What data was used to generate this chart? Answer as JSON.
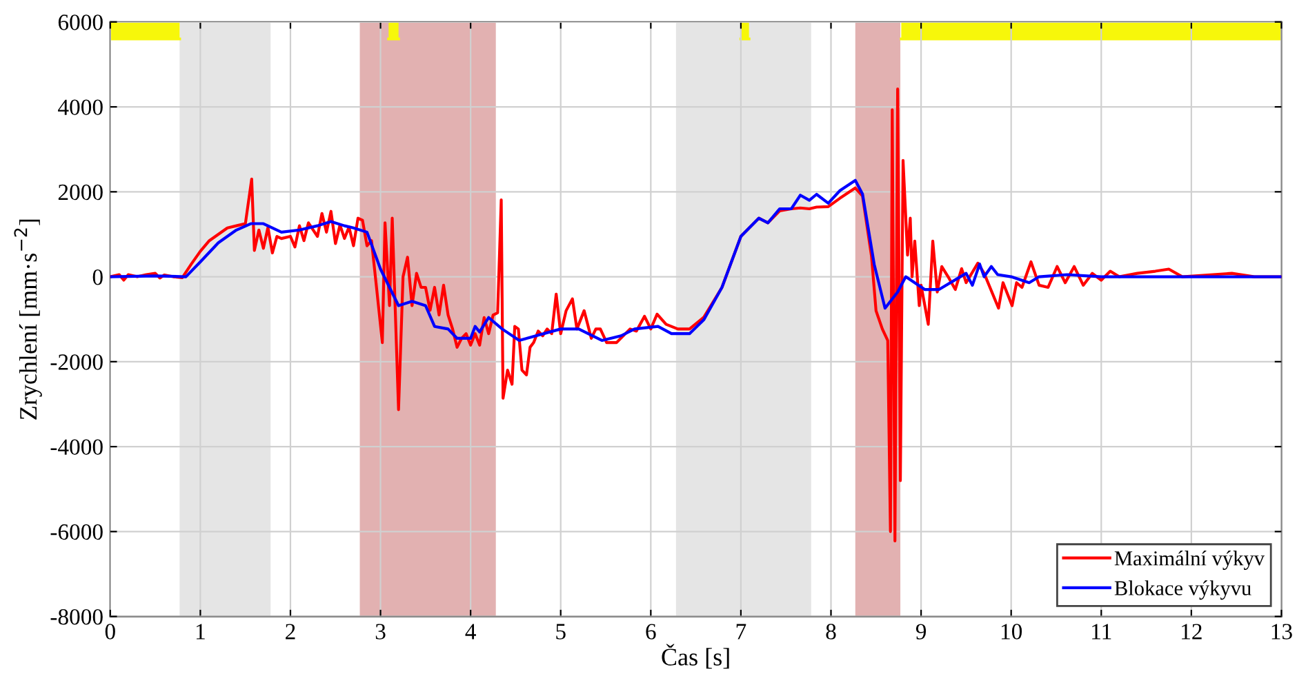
{
  "chart_data": {
    "type": "line",
    "xlabel": "Čas [s]",
    "ylabel": "Zrychlení [mm·s$^{−2}$]",
    "xlim": [
      0,
      13
    ],
    "ylim": [
      -8000,
      6000
    ],
    "xticks": [
      0,
      1,
      2,
      3,
      4,
      5,
      6,
      7,
      8,
      9,
      10,
      11,
      12,
      13
    ],
    "yticks": [
      -8000,
      -6000,
      -4000,
      -2000,
      0,
      2000,
      4000,
      6000
    ],
    "grid": true,
    "legend": "bottom right",
    "line_style": "solid",
    "marker": "none",
    "bands": [
      {
        "axis": "x",
        "from": 0.77,
        "to": 1.78,
        "color": "#e5e5e5"
      },
      {
        "axis": "x",
        "from": 2.77,
        "to": 4.28,
        "color": "#e2b1b1"
      },
      {
        "axis": "x",
        "from": 6.28,
        "to": 7.78,
        "color": "#e5e5e5"
      },
      {
        "axis": "x",
        "from": 8.27,
        "to": 8.77,
        "color": "#e2b1b1"
      }
    ],
    "series": [
      {
        "type": "line",
        "color": "#f7f70a",
        "x": [
          0,
          0.77,
          1.5,
          3.09,
          3.2,
          5,
          7.0,
          7.09,
          8,
          8.78,
          13
        ],
        "values": [
          5600,
          5600,
          null,
          5600,
          5600,
          null,
          5600,
          5600,
          null,
          5600,
          5600
        ],
        "lower": [
          5600,
          5600,
          null,
          5600,
          5600,
          null,
          5600,
          5600,
          null,
          5600,
          5600
        ],
        "upper": [
          6000,
          6000,
          null,
          6000,
          6000,
          null,
          6000,
          6000,
          null,
          6000,
          6000
        ]
      },
      {
        "name": "Maximální výkyv",
        "color": "#ff0000",
        "x": [
          0,
          0.1,
          0.15,
          0.2,
          0.3,
          0.4,
          0.5,
          0.55,
          0.6,
          0.7,
          0.8,
          0.9,
          1.0,
          1.1,
          1.2,
          1.3,
          1.4,
          1.5,
          1.57,
          1.6,
          1.65,
          1.7,
          1.75,
          1.8,
          1.85,
          1.9,
          2.0,
          2.05,
          2.1,
          2.15,
          2.2,
          2.3,
          2.35,
          2.4,
          2.45,
          2.5,
          2.55,
          2.6,
          2.65,
          2.7,
          2.75,
          2.8,
          2.85,
          2.9,
          2.95,
          3.02,
          3.05,
          3.1,
          3.13,
          3.2,
          3.25,
          3.3,
          3.35,
          3.4,
          3.45,
          3.5,
          3.55,
          3.6,
          3.65,
          3.7,
          3.75,
          3.8,
          3.85,
          3.9,
          3.95,
          4.0,
          4.05,
          4.1,
          4.15,
          4.2,
          4.25,
          4.3,
          4.34,
          4.36,
          4.41,
          4.46,
          4.49,
          4.53,
          4.57,
          4.62,
          4.66,
          4.7,
          4.75,
          4.8,
          4.85,
          4.9,
          4.95,
          5.0,
          5.06,
          5.13,
          5.18,
          5.26,
          5.34,
          5.39,
          5.44,
          5.51,
          5.62,
          5.77,
          5.84,
          5.93,
          6.0,
          6.07,
          6.17,
          6.3,
          6.43,
          6.59,
          6.79,
          7.0,
          7.2,
          7.3,
          7.43,
          7.56,
          7.66,
          7.76,
          7.84,
          7.97,
          8.1,
          8.27,
          8.35,
          8.45,
          8.5,
          8.57,
          8.63,
          8.66,
          8.68,
          8.71,
          8.74,
          8.77,
          8.8,
          8.85,
          8.88,
          8.9,
          8.93,
          8.98,
          9.0,
          9.08,
          9.13,
          9.18,
          9.23,
          9.3,
          9.38,
          9.45,
          9.5,
          9.63,
          9.7,
          9.86,
          9.91,
          10.01,
          10.06,
          10.12,
          10.22,
          10.31,
          10.41,
          10.51,
          10.6,
          10.7,
          10.8,
          10.9,
          11.0,
          11.1,
          11.2,
          11.4,
          11.6,
          11.75,
          11.9,
          12.1,
          12.45,
          12.7,
          13.0
        ],
        "values": [
          0,
          50,
          -80,
          50,
          0,
          50,
          80,
          -30,
          40,
          0,
          -20,
          300,
          600,
          850,
          1000,
          1150,
          1200,
          1250,
          2300,
          620,
          1100,
          670,
          1160,
          560,
          950,
          900,
          950,
          700,
          1200,
          850,
          1270,
          950,
          1490,
          1050,
          1540,
          780,
          1220,
          900,
          1170,
          730,
          1380,
          1330,
          730,
          850,
          -140,
          -1550,
          1270,
          -680,
          1380,
          -3130,
          0,
          460,
          -680,
          80,
          -250,
          -250,
          -790,
          -250,
          -900,
          -200,
          -900,
          -1230,
          -1660,
          -1450,
          -1340,
          -1610,
          -1340,
          -1610,
          -960,
          -1340,
          -900,
          -850,
          1810,
          -2860,
          -2200,
          -2530,
          -1170,
          -1230,
          -2200,
          -2310,
          -1660,
          -1550,
          -1280,
          -1390,
          -1230,
          -1340,
          -410,
          -1340,
          -800,
          -520,
          -1230,
          -800,
          -1450,
          -1230,
          -1230,
          -1550,
          -1550,
          -1230,
          -1280,
          -930,
          -1230,
          -880,
          -1120,
          -1230,
          -1230,
          -950,
          -250,
          950,
          1380,
          1270,
          1550,
          1600,
          1620,
          1600,
          1640,
          1650,
          1850,
          2090,
          1900,
          480,
          -800,
          -1230,
          -1500,
          -6000,
          3930,
          -6220,
          4420,
          -4800,
          2740,
          510,
          1380,
          0,
          840,
          -680,
          -200,
          -1120,
          840,
          -360,
          240,
          0,
          -300,
          190,
          -140,
          320,
          80,
          -740,
          -140,
          -680,
          -140,
          -250,
          350,
          -200,
          -250,
          240,
          -140,
          240,
          -200,
          80,
          -80,
          130,
          0,
          80,
          130,
          180,
          0,
          30,
          80,
          0,
          0
        ]
      },
      {
        "name": "Blokace výkyvu",
        "color": "#0000ff",
        "x": [
          0,
          0.5,
          0.84,
          1.0,
          1.2,
          1.4,
          1.56,
          1.7,
          1.9,
          2.1,
          2.3,
          2.45,
          2.6,
          2.7,
          2.85,
          3.0,
          3.2,
          3.35,
          3.5,
          3.6,
          3.75,
          3.85,
          4.0,
          4.05,
          4.1,
          4.2,
          4.35,
          4.54,
          5.0,
          5.2,
          5.46,
          5.67,
          5.82,
          6.08,
          6.23,
          6.43,
          6.59,
          6.79,
          7.0,
          7.2,
          7.3,
          7.43,
          7.56,
          7.66,
          7.76,
          7.84,
          7.97,
          8.1,
          8.27,
          8.35,
          8.48,
          8.6,
          8.74,
          8.83,
          9.04,
          9.2,
          9.5,
          9.57,
          9.65,
          9.7,
          9.78,
          9.85,
          10.0,
          10.2,
          10.31,
          10.62,
          11.0,
          12.0,
          13.0
        ],
        "values": [
          0,
          20,
          0,
          350,
          800,
          1100,
          1250,
          1250,
          1050,
          1100,
          1200,
          1300,
          1200,
          1150,
          1050,
          180,
          -680,
          -580,
          -680,
          -1170,
          -1230,
          -1450,
          -1450,
          -1170,
          -1300,
          -960,
          -1230,
          -1500,
          -1230,
          -1230,
          -1500,
          -1390,
          -1230,
          -1170,
          -1340,
          -1340,
          -1010,
          -250,
          950,
          1380,
          1270,
          1600,
          1600,
          1920,
          1800,
          1940,
          1730,
          2030,
          2270,
          1950,
          290,
          -740,
          -360,
          0,
          -300,
          -300,
          80,
          -200,
          300,
          0,
          240,
          50,
          0,
          -140,
          0,
          50,
          0,
          0,
          0
        ]
      }
    ]
  }
}
